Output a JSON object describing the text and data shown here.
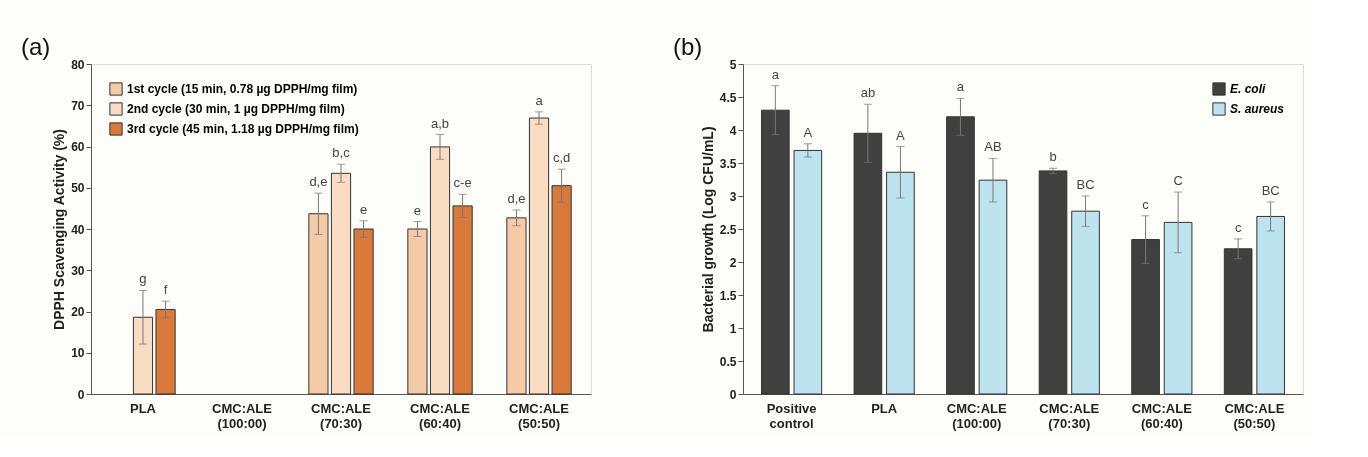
{
  "chart_data": [
    {
      "type": "bar",
      "annotations": [
        "(a)"
      ],
      "ylabel": "DPPH Scavenging Activity (%)",
      "categories": [
        "PLA",
        "CMC:ALE (100:00)",
        "CMC:ALE (70:30)",
        "CMC:ALE (60:40)",
        "CMC:ALE (50:50)"
      ],
      "series": [
        {
          "name": "1st cycle (15 min, 0.78 µg DPPH/mg film)",
          "color": "#f5cba7",
          "values": [
            null,
            null,
            43.7,
            40.0,
            42.7
          ],
          "errors": [
            null,
            null,
            5.0,
            1.8,
            1.9
          ],
          "value_labels": [
            null,
            null,
            "d,e",
            "e",
            "d,e"
          ]
        },
        {
          "name": "2nd cycle (30 min, 1 µg DPPH/mg film)",
          "color": "#f9dcc2",
          "values": [
            18.6,
            null,
            53.5,
            59.9,
            66.9
          ],
          "errors": [
            6.5,
            null,
            2.2,
            3.0,
            1.5
          ],
          "value_labels": [
            "g",
            null,
            "b,c",
            "a,b",
            "a"
          ]
        },
        {
          "name": "3rd cycle (45 min, 1.18 µg DPPH/mg film)",
          "color": "#d9793a",
          "values": [
            20.5,
            null,
            40.0,
            45.6,
            50.5
          ],
          "errors": [
            2.0,
            null,
            2.0,
            2.8,
            4.0
          ],
          "value_labels": [
            "f",
            null,
            "e",
            "c-e",
            "c,d"
          ]
        }
      ],
      "ylim": [
        0,
        80
      ],
      "yticks": [
        0,
        10,
        20,
        30,
        40,
        50,
        60,
        70,
        80
      ],
      "grid": false,
      "legend": "top left"
    },
    {
      "type": "bar",
      "annotations": [
        "(b)"
      ],
      "ylabel": "Bacterial growth (Log CFU/mL)",
      "categories": [
        "Positive control",
        "PLA",
        "CMC:ALE (100:00)",
        "CMC:ALE (70:30)",
        "CMC:ALE (60:40)",
        "CMC:ALE (50:50)"
      ],
      "series": [
        {
          "name": "E. coli",
          "color": "#404040",
          "values": [
            4.3,
            3.95,
            4.2,
            3.38,
            2.34,
            2.2
          ],
          "errors": [
            0.37,
            0.44,
            0.28,
            0.04,
            0.36,
            0.15
          ],
          "value_labels": [
            "a",
            "ab",
            "a",
            "b",
            "c",
            "c"
          ]
        },
        {
          "name": "S. aureus",
          "color": "#bde3ef",
          "values": [
            3.69,
            3.36,
            3.24,
            2.77,
            2.6,
            2.69
          ],
          "errors": [
            0.1,
            0.39,
            0.33,
            0.23,
            0.46,
            0.22
          ],
          "value_labels": [
            "A",
            "A",
            "AB",
            "BC",
            "C",
            "BC"
          ]
        }
      ],
      "ylim": [
        0,
        5
      ],
      "yticks": [
        0,
        0.5,
        1,
        1.5,
        2,
        2.5,
        3,
        3.5,
        4,
        4.5,
        5
      ],
      "grid": false,
      "legend": "top right"
    }
  ]
}
